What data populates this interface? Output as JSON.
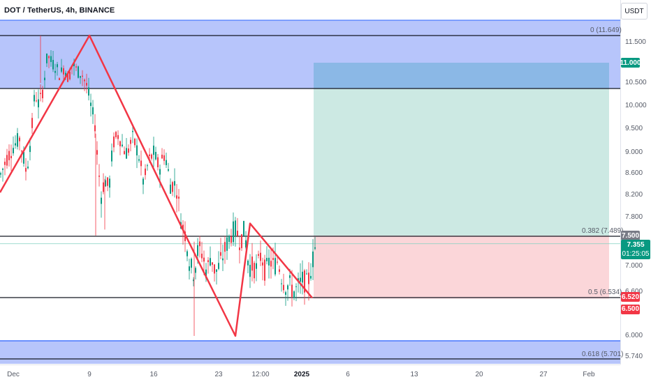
{
  "chart_data": {
    "type": "candlestick",
    "title": "DOT / TetherUS, 4h, BINANCE",
    "currency": "USDT",
    "y_ticks": [
      "11.500",
      "10.500",
      "10.000",
      "9.500",
      "9.000",
      "8.600",
      "8.200",
      "7.800",
      "7.000",
      "6.600",
      "6.000",
      "5.740"
    ],
    "x_ticks": [
      "Dec",
      "9",
      "16",
      "23",
      "12:00",
      "2025",
      "6",
      "13",
      "20",
      "27",
      "Feb"
    ],
    "fib_levels": [
      {
        "label": "0 (11.649)",
        "price": 11.649
      },
      {
        "label": "0.382 (7.489)",
        "price": 7.489
      },
      {
        "label": "0.5 (6.534)",
        "price": 6.534
      },
      {
        "label": "0.618 (5.701)",
        "price": 5.701
      }
    ],
    "price_tags": [
      {
        "text": "11.000",
        "price": 11.0,
        "color": "#089981"
      },
      {
        "text": "7.500",
        "price": 7.5,
        "color": "#787b86"
      },
      {
        "text": "7.355",
        "price": 7.355,
        "color": "#089981",
        "sub": "01:25:05"
      },
      {
        "text": "6.520",
        "price": 6.52,
        "color": "#f23645"
      },
      {
        "text": "6.500",
        "price": 6.5,
        "color": "#f23645"
      }
    ],
    "position": {
      "entry": 7.5,
      "target": 11.0,
      "stop": 6.5
    },
    "zigzag": [
      {
        "date": "Nov 29",
        "price": 8.25
      },
      {
        "date": "Dec 9",
        "price": 11.65
      },
      {
        "date": "Dec 20",
        "price": 7.45
      },
      {
        "date": "Dec 26",
        "price": 6.0
      },
      {
        "date": "Dec 27",
        "price": 7.7
      },
      {
        "date": "Jan 2",
        "price": 6.53
      }
    ]
  }
}
